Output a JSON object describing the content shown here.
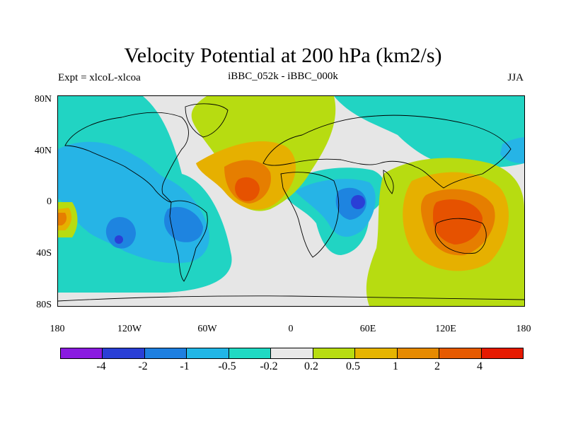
{
  "title": "Velocity Potential at 200 hPa (km2/s)",
  "left_subtitle": "Expt = xlcoL-xlcoa",
  "center_subtitle": "iBBC_052k - iBBC_000k",
  "right_subtitle": "JJA",
  "lat_labels": [
    "80N",
    "40N",
    "0",
    "40S",
    "80S"
  ],
  "lon_labels": [
    "180",
    "120W",
    "60W",
    "0",
    "60E",
    "120E",
    "180"
  ],
  "colorbar": {
    "colors": [
      "#8a1be0",
      "#2a3fd6",
      "#1e7fe0",
      "#21b6e6",
      "#20d9c3",
      "#e8e8e8",
      "#b7dc11",
      "#e6b400",
      "#e68a00",
      "#e65a00",
      "#e61a00"
    ],
    "labels": [
      "-4",
      "-2",
      "-1",
      "-0.5",
      "-0.2",
      "0.2",
      "0.5",
      "1",
      "2",
      "4"
    ]
  },
  "map_palette": {
    "land_outline": "#000000",
    "neutral": "#e6e6e6",
    "lt_neg": "#21d4c3",
    "neg": "#26b4e6",
    "mid_neg": "#1e84e0",
    "strong_neg": "#2a3fd6",
    "lt_pos": "#b7dc11",
    "pos": "#e6b000",
    "mid_pos": "#e67e00",
    "strong_pos": "#e65200"
  }
}
